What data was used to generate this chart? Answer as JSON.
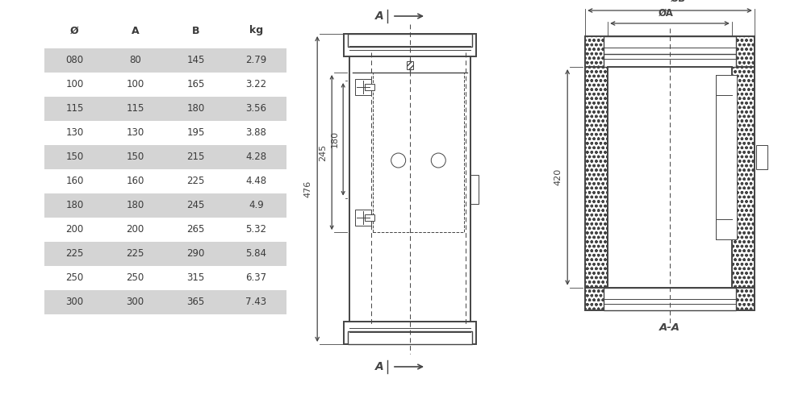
{
  "table_headers": [
    "Ø",
    "A",
    "B",
    "kg"
  ],
  "table_rows": [
    [
      "080",
      "80",
      "145",
      "2.79"
    ],
    [
      "100",
      "100",
      "165",
      "3.22"
    ],
    [
      "115",
      "115",
      "180",
      "3.56"
    ],
    [
      "130",
      "130",
      "195",
      "3.88"
    ],
    [
      "150",
      "150",
      "215",
      "4.28"
    ],
    [
      "160",
      "160",
      "225",
      "4.48"
    ],
    [
      "180",
      "180",
      "245",
      "4.9"
    ],
    [
      "200",
      "200",
      "265",
      "5.32"
    ],
    [
      "225",
      "225",
      "290",
      "5.84"
    ],
    [
      "250",
      "250",
      "315",
      "6.37"
    ],
    [
      "300",
      "300",
      "365",
      "7.43"
    ]
  ],
  "shaded_rows": [
    0,
    2,
    4,
    6,
    8,
    10
  ],
  "row_bg_shaded": "#d4d4d4",
  "row_bg_white": "#ffffff",
  "text_color": "#3a3a3a",
  "line_color": "#444444",
  "dim_color": "#444444",
  "background": "#ffffff",
  "fig_width": 10.0,
  "fig_height": 5.0
}
